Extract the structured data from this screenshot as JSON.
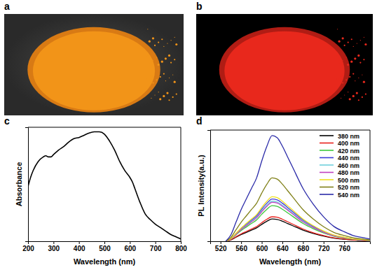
{
  "panel_labels": [
    "a",
    "b",
    "c",
    "d"
  ],
  "chart_data": [
    {
      "type": "line",
      "xlabel": "Wavelength (nm)",
      "ylabel": "Absorbance",
      "x": [
        200,
        210,
        220,
        240,
        260,
        270,
        280,
        290,
        300,
        320,
        340,
        360,
        380,
        400,
        420,
        440,
        460,
        470,
        480,
        500,
        520,
        540,
        560,
        580,
        600,
        610,
        620,
        640,
        660,
        680,
        700,
        720,
        740,
        760,
        780,
        800
      ],
      "values": [
        0.48,
        0.56,
        0.62,
        0.7,
        0.74,
        0.75,
        0.74,
        0.74,
        0.76,
        0.8,
        0.83,
        0.87,
        0.9,
        0.91,
        0.93,
        0.95,
        0.96,
        0.96,
        0.96,
        0.94,
        0.88,
        0.8,
        0.7,
        0.62,
        0.56,
        0.52,
        0.46,
        0.34,
        0.24,
        0.19,
        0.15,
        0.12,
        0.09,
        0.06,
        0.04,
        0.02
      ],
      "color": "#000000",
      "xlim": [
        200,
        800
      ],
      "xticks": [
        200,
        300,
        400,
        500,
        600,
        700,
        800
      ],
      "ylim": [
        0,
        1
      ],
      "tick_labels": "x"
    },
    {
      "type": "line",
      "xlabel": "Wavelength (nm)",
      "ylabel": "PL Intensity(a.u.)",
      "x": [
        530,
        540,
        550,
        560,
        570,
        580,
        590,
        600,
        610,
        620,
        630,
        640,
        650,
        660,
        680,
        700,
        720,
        740,
        760,
        780,
        800,
        810
      ],
      "series": [
        {
          "name": "380 nm",
          "color": "#000000",
          "values": [
            0,
            1.2,
            3.6,
            6,
            8,
            10,
            12,
            15.2,
            18,
            20,
            19.6,
            18,
            16,
            14,
            10,
            7,
            4.6,
            2.8,
            1.8,
            1,
            0.6,
            0.4
          ]
        },
        {
          "name": "400 nm",
          "color": "#e8201c",
          "values": [
            0,
            1.3,
            4,
            6.6,
            8.8,
            11,
            13.2,
            16.7,
            19.8,
            22,
            21.6,
            19.8,
            17.6,
            15.4,
            11,
            7.7,
            5.1,
            3.1,
            2,
            1.1,
            0.7,
            0.4
          ]
        },
        {
          "name": "420 nm",
          "color": "#3cc83c",
          "values": [
            0,
            1.9,
            5.8,
            9.6,
            12.8,
            16,
            19.2,
            24.3,
            28.8,
            32,
            31.4,
            28.8,
            25.6,
            22.4,
            16,
            11.2,
            7.4,
            4.5,
            2.9,
            1.6,
            1,
            0.6
          ]
        },
        {
          "name": "440 nm",
          "color": "#3c3cd8",
          "values": [
            0,
            2.3,
            6.8,
            11.4,
            15.2,
            19,
            22.8,
            28.9,
            34.2,
            38,
            37.2,
            34.2,
            30.4,
            26.6,
            19,
            13.3,
            8.7,
            5.3,
            3.4,
            1.9,
            1.1,
            0.8
          ]
        },
        {
          "name": "460 nm",
          "color": "#70d0dc",
          "values": [
            0,
            2.2,
            6.5,
            10.8,
            14.4,
            18,
            21.6,
            27.4,
            32.4,
            36,
            35.3,
            32.4,
            28.8,
            25.2,
            18,
            12.6,
            8.3,
            5,
            3.2,
            1.8,
            1.1,
            0.7
          ]
        },
        {
          "name": "480 nm",
          "color": "#c040c0",
          "values": [
            0,
            2.1,
            6.3,
            10.5,
            14,
            17.5,
            21,
            26.6,
            31.5,
            35,
            34.3,
            31.5,
            28,
            24.5,
            17.5,
            12.3,
            8.1,
            4.9,
            3.2,
            1.8,
            1.1,
            0.7
          ]
        },
        {
          "name": "500 nm",
          "color": "#f0e020",
          "values": [
            0,
            2.4,
            7.2,
            12,
            16,
            20,
            24,
            30.4,
            36,
            40,
            39.2,
            36,
            32,
            28,
            20,
            14,
            9.2,
            5.6,
            3.6,
            2,
            1.2,
            0.8
          ]
        },
        {
          "name": "520 nm",
          "color": "#808018",
          "values": [
            0,
            3.4,
            10.3,
            17.1,
            22.8,
            28.5,
            34.2,
            43.3,
            51.3,
            57,
            55.9,
            51.3,
            45.6,
            39.9,
            28.5,
            20,
            13.1,
            8,
            5.1,
            2.9,
            1.7,
            1.1
          ]
        },
        {
          "name": "540 nm",
          "color": "#2a2aa8",
          "values": [
            0,
            5.7,
            17.1,
            28.5,
            38,
            47.5,
            57,
            72.2,
            85.5,
            95,
            93.1,
            85.5,
            76,
            66.5,
            47.5,
            33.3,
            21.9,
            13.3,
            8.6,
            4.8,
            2.9,
            1.9
          ]
        }
      ],
      "xlim": [
        500,
        810
      ],
      "xticks": [
        520,
        560,
        600,
        640,
        680,
        720,
        760
      ],
      "ylim": [
        0,
        100
      ],
      "tick_labels": "x",
      "legend": "upper right"
    }
  ]
}
